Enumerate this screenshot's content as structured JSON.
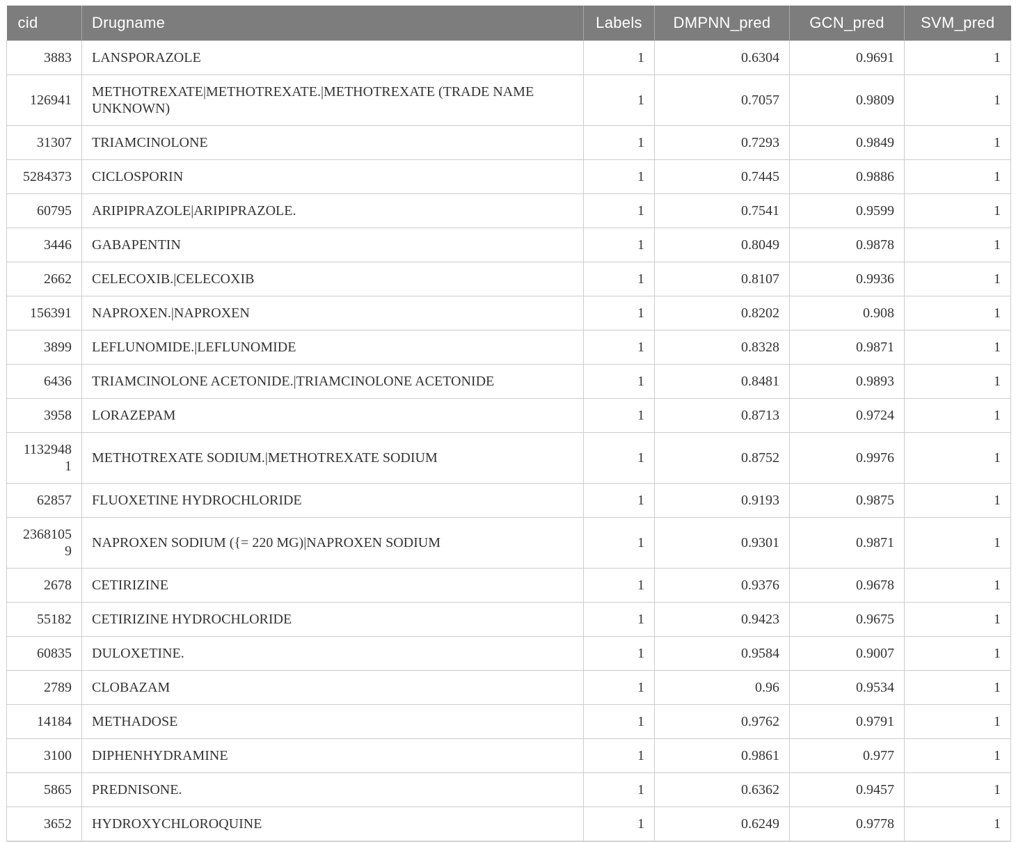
{
  "table": {
    "columns": [
      {
        "key": "cid",
        "label": "cid"
      },
      {
        "key": "drugname",
        "label": "Drugname"
      },
      {
        "key": "labels",
        "label": "Labels"
      },
      {
        "key": "dmpnn",
        "label": "DMPNN_pred"
      },
      {
        "key": "gcn",
        "label": "GCN_pred"
      },
      {
        "key": "svm",
        "label": "SVM_pred"
      }
    ],
    "rows": [
      {
        "cid": "3883",
        "drugname": "LANSPORAZOLE",
        "labels": "1",
        "dmpnn": "0.6304",
        "gcn": "0.9691",
        "svm": "1"
      },
      {
        "cid": "126941",
        "drugname": "METHOTREXATE|METHOTREXATE.|METHOTREXATE (TRADE NAME UNKNOWN)",
        "labels": "1",
        "dmpnn": "0.7057",
        "gcn": "0.9809",
        "svm": "1"
      },
      {
        "cid": "31307",
        "drugname": "TRIAMCINOLONE",
        "labels": "1",
        "dmpnn": "0.7293",
        "gcn": "0.9849",
        "svm": "1"
      },
      {
        "cid": "5284373",
        "drugname": "CICLOSPORIN",
        "labels": "1",
        "dmpnn": "0.7445",
        "gcn": "0.9886",
        "svm": "1"
      },
      {
        "cid": "60795",
        "drugname": "ARIPIPRAZOLE|ARIPIPRAZOLE.",
        "labels": "1",
        "dmpnn": "0.7541",
        "gcn": "0.9599",
        "svm": "1"
      },
      {
        "cid": "3446",
        "drugname": "GABAPENTIN",
        "labels": "1",
        "dmpnn": "0.8049",
        "gcn": "0.9878",
        "svm": "1"
      },
      {
        "cid": "2662",
        "drugname": "CELECOXIB.|CELECOXIB",
        "labels": "1",
        "dmpnn": "0.8107",
        "gcn": "0.9936",
        "svm": "1"
      },
      {
        "cid": "156391",
        "drugname": "NAPROXEN.|NAPROXEN",
        "labels": "1",
        "dmpnn": "0.8202",
        "gcn": "0.908",
        "svm": "1"
      },
      {
        "cid": "3899",
        "drugname": "LEFLUNOMIDE.|LEFLUNOMIDE",
        "labels": "1",
        "dmpnn": "0.8328",
        "gcn": "0.9871",
        "svm": "1"
      },
      {
        "cid": "6436",
        "drugname": "TRIAMCINOLONE ACETONIDE.|TRIAMCINOLONE ACETONIDE",
        "labels": "1",
        "dmpnn": "0.8481",
        "gcn": "0.9893",
        "svm": "1"
      },
      {
        "cid": "3958",
        "drugname": "LORAZEPAM",
        "labels": "1",
        "dmpnn": "0.8713",
        "gcn": "0.9724",
        "svm": "1"
      },
      {
        "cid": "11329481",
        "drugname": "METHOTREXATE SODIUM.|METHOTREXATE SODIUM",
        "labels": "1",
        "dmpnn": "0.8752",
        "gcn": "0.9976",
        "svm": "1"
      },
      {
        "cid": "62857",
        "drugname": "FLUOXETINE HYDROCHLORIDE",
        "labels": "1",
        "dmpnn": "0.9193",
        "gcn": "0.9875",
        "svm": "1"
      },
      {
        "cid": "23681059",
        "drugname": "NAPROXEN SODIUM ({= 220 MG)|NAPROXEN SODIUM",
        "labels": "1",
        "dmpnn": "0.9301",
        "gcn": "0.9871",
        "svm": "1"
      },
      {
        "cid": "2678",
        "drugname": "CETIRIZINE",
        "labels": "1",
        "dmpnn": "0.9376",
        "gcn": "0.9678",
        "svm": "1"
      },
      {
        "cid": "55182",
        "drugname": "CETIRIZINE HYDROCHLORIDE",
        "labels": "1",
        "dmpnn": "0.9423",
        "gcn": "0.9675",
        "svm": "1"
      },
      {
        "cid": "60835",
        "drugname": "DULOXETINE.",
        "labels": "1",
        "dmpnn": "0.9584",
        "gcn": "0.9007",
        "svm": "1"
      },
      {
        "cid": "2789",
        "drugname": "CLOBAZAM",
        "labels": "1",
        "dmpnn": "0.96",
        "gcn": "0.9534",
        "svm": "1"
      },
      {
        "cid": "14184",
        "drugname": "METHADOSE",
        "labels": "1",
        "dmpnn": "0.9762",
        "gcn": "0.9791",
        "svm": "1"
      },
      {
        "cid": "3100",
        "drugname": "DIPHENHYDRAMINE",
        "labels": "1",
        "dmpnn": "0.9861",
        "gcn": "0.977",
        "svm": "1"
      },
      {
        "cid": "5865",
        "drugname": "PREDNISONE.",
        "labels": "1",
        "dmpnn": "0.6362",
        "gcn": "0.9457",
        "svm": "1"
      },
      {
        "cid": "3652",
        "drugname": "HYDROXYCHLOROQUINE",
        "labels": "1",
        "dmpnn": "0.6249",
        "gcn": "0.9778",
        "svm": "1"
      }
    ],
    "colors": {
      "header_bg": "#7d7d7d",
      "header_text": "#ffffff",
      "body_text": "#333333",
      "row_border": "#cccccc"
    }
  }
}
